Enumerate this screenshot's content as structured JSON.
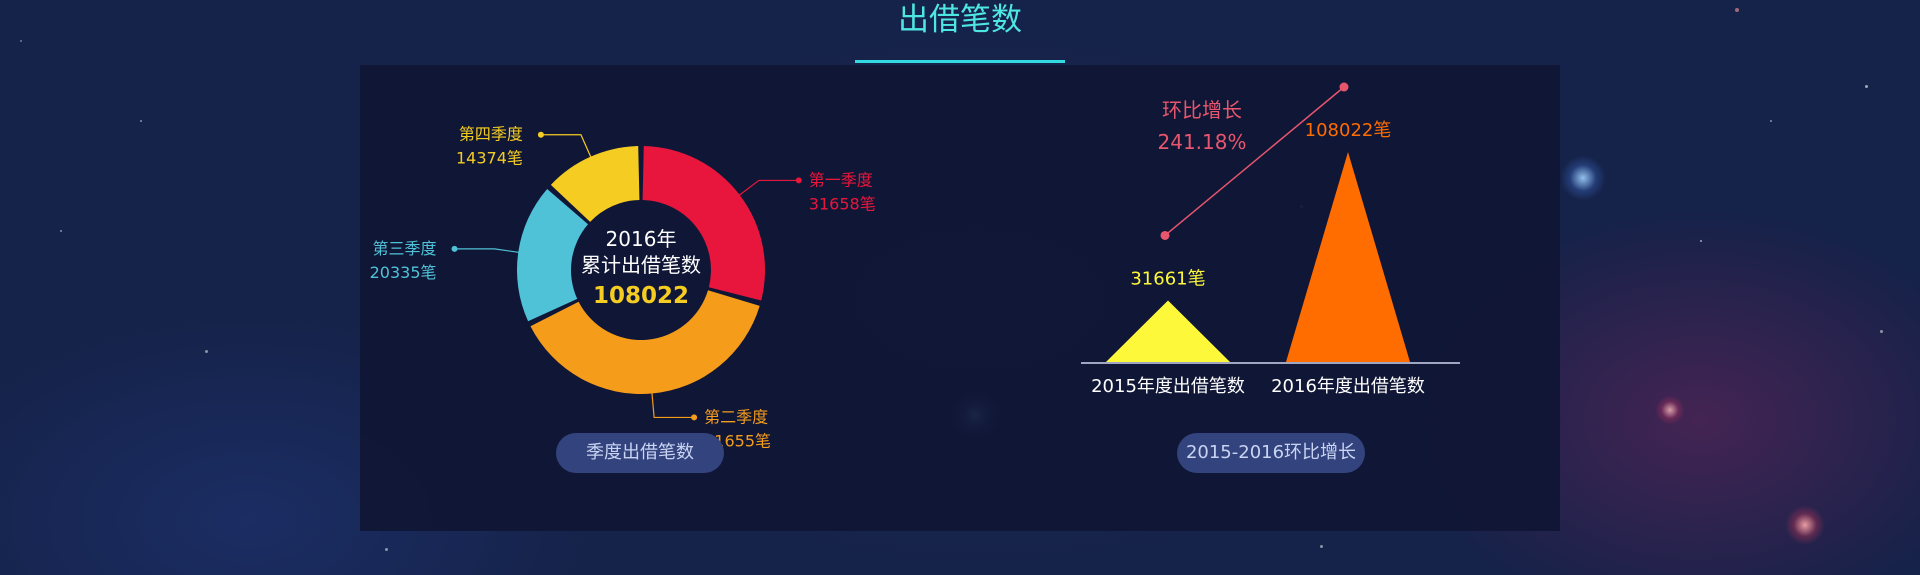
{
  "page": {
    "title": "出借笔数"
  },
  "colors": {
    "q1": "#e8163c",
    "q2": "#f59c1a",
    "q3": "#4fc2d7",
    "q4": "#f5cd22",
    "bar2015": "#fdf93a",
    "bar2016": "#ff6c00",
    "growth": "#e8566d"
  },
  "chart_data": [
    {
      "type": "pie",
      "variant": "donut",
      "center": {
        "line1": "2016年",
        "line2": "累计出借笔数",
        "total": "108022"
      },
      "slices": [
        {
          "name": "第一季度",
          "value": 31658,
          "value_label": "31658笔"
        },
        {
          "name": "第二季度",
          "value": 41655,
          "value_label": "41655笔"
        },
        {
          "name": "第三季度",
          "value": 20335,
          "value_label": "20335笔"
        },
        {
          "name": "第四季度",
          "value": 14374,
          "value_label": "14374笔"
        }
      ],
      "caption": "季度出借笔数"
    },
    {
      "type": "bar",
      "variant": "triangle",
      "categories": [
        "2015年度出借笔数",
        "2016年度出借笔数"
      ],
      "values": [
        31661,
        108022
      ],
      "value_labels": [
        "31661笔",
        "108022笔"
      ],
      "growth": {
        "label": "环比增长",
        "value": "241.18%"
      },
      "caption": "2015-2016环比增长"
    }
  ]
}
